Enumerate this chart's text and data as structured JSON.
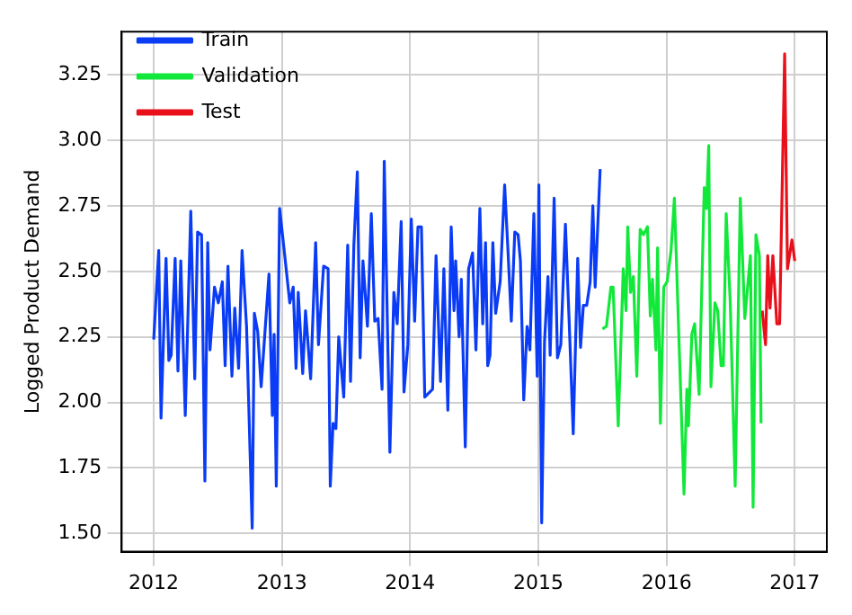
{
  "chart_data": {
    "type": "line",
    "ylabel": "Logged Product Demand",
    "xlim": [
      2011.75,
      2017.25
    ],
    "ylim": [
      1.43,
      3.415
    ],
    "xticks": [
      2012,
      2013,
      2014,
      2015,
      2016,
      2017
    ],
    "yticks": [
      {
        "value": 1.5,
        "label": "1.50"
      },
      {
        "value": 1.75,
        "label": "1.75"
      },
      {
        "value": 2.0,
        "label": "2.00"
      },
      {
        "value": 2.25,
        "label": "2.25"
      },
      {
        "value": 2.5,
        "label": "2.50"
      },
      {
        "value": 2.75,
        "label": "2.75"
      },
      {
        "value": 3.0,
        "label": "3.00"
      },
      {
        "value": 3.25,
        "label": "3.25"
      }
    ],
    "grid": true,
    "legend": "top left",
    "series": [
      {
        "name": "Train",
        "color": "#0b3cf5",
        "x": [
          2012.0,
          2012.039,
          2012.057,
          2012.096,
          2012.118,
          2012.136,
          2012.167,
          2012.189,
          2012.211,
          2012.246,
          2012.289,
          2012.32,
          2012.342,
          2012.373,
          2012.399,
          2012.421,
          2012.439,
          2012.474,
          2012.504,
          2012.535,
          2012.557,
          2012.579,
          2012.61,
          2012.632,
          2012.662,
          2012.689,
          2012.724,
          2012.768,
          2012.785,
          2012.811,
          2012.838,
          2012.899,
          2012.925,
          2012.939,
          2012.956,
          2012.982,
          2013.022,
          2013.061,
          2013.088,
          2013.11,
          2013.127,
          2013.162,
          2013.184,
          2013.224,
          2013.263,
          2013.285,
          2013.325,
          2013.36,
          2013.377,
          2013.399,
          2013.421,
          2013.443,
          2013.482,
          2013.513,
          2013.535,
          2013.561,
          2013.588,
          2013.61,
          2013.632,
          2013.667,
          2013.697,
          2013.724,
          2013.75,
          2013.781,
          2013.798,
          2013.842,
          2013.873,
          2013.899,
          2013.93,
          2013.952,
          2013.982,
          2014.009,
          2014.035,
          2014.061,
          2014.088,
          2014.114,
          2014.175,
          2014.202,
          2014.237,
          2014.263,
          2014.294,
          2014.32,
          2014.342,
          2014.355,
          2014.382,
          2014.399,
          2014.43,
          2014.456,
          2014.487,
          2014.513,
          2014.544,
          2014.566,
          2014.588,
          2014.605,
          2014.623,
          2014.645,
          2014.667,
          2014.702,
          2014.737,
          2014.763,
          2014.789,
          2014.816,
          2014.842,
          2014.86,
          2014.886,
          2014.912,
          2014.934,
          2014.965,
          2014.991,
          2015.004,
          2015.026,
          2015.048,
          2015.075,
          2015.092,
          2015.123,
          2015.149,
          2015.175,
          2015.211,
          2015.241,
          2015.272,
          2015.307,
          2015.329,
          2015.351,
          2015.377,
          2015.404,
          2015.425,
          2015.443,
          2015.482
        ],
        "values": [
          2.24,
          2.58,
          1.94,
          2.55,
          2.16,
          2.18,
          2.55,
          2.12,
          2.54,
          1.95,
          2.73,
          2.09,
          2.65,
          2.64,
          1.7,
          2.61,
          2.2,
          2.44,
          2.38,
          2.46,
          2.14,
          2.52,
          2.1,
          2.36,
          2.13,
          2.58,
          2.29,
          1.52,
          2.34,
          2.27,
          2.06,
          2.49,
          1.95,
          2.26,
          1.68,
          2.74,
          2.56,
          2.38,
          2.44,
          2.13,
          2.42,
          2.11,
          2.35,
          2.09,
          2.61,
          2.22,
          2.52,
          2.51,
          1.68,
          1.92,
          1.9,
          2.25,
          2.02,
          2.6,
          2.08,
          2.6,
          2.88,
          2.17,
          2.54,
          2.29,
          2.72,
          2.31,
          2.32,
          2.05,
          2.92,
          1.81,
          2.42,
          2.3,
          2.69,
          2.04,
          2.22,
          2.7,
          2.31,
          2.67,
          2.67,
          2.02,
          2.05,
          2.56,
          2.08,
          2.51,
          1.97,
          2.67,
          2.35,
          2.54,
          2.25,
          2.47,
          1.83,
          2.51,
          2.57,
          2.2,
          2.74,
          2.3,
          2.61,
          2.14,
          2.18,
          2.61,
          2.34,
          2.46,
          2.83,
          2.58,
          2.31,
          2.65,
          2.64,
          2.54,
          2.01,
          2.29,
          2.2,
          2.72,
          2.1,
          2.83,
          1.54,
          2.23,
          2.48,
          2.18,
          2.78,
          2.17,
          2.22,
          2.68,
          2.3,
          1.88,
          2.55,
          2.21,
          2.37,
          2.37,
          2.46,
          2.75,
          2.44,
          2.89
        ]
      },
      {
        "name": "Validation",
        "color": "#12e83a",
        "x": [
          2015.5,
          2015.531,
          2015.566,
          2015.583,
          2015.623,
          2015.662,
          2015.684,
          2015.697,
          2015.719,
          2015.741,
          2015.768,
          2015.794,
          2015.82,
          2015.851,
          2015.873,
          2015.89,
          2015.917,
          2015.93,
          2015.952,
          2015.978,
          2016.004,
          2016.035,
          2016.061,
          2016.096,
          2016.136,
          2016.158,
          2016.171,
          2016.197,
          2016.219,
          2016.254,
          2016.294,
          2016.311,
          2016.329,
          2016.346,
          2016.377,
          2016.399,
          2016.425,
          2016.443,
          2016.465,
          2016.496,
          2016.535,
          2016.575,
          2016.61,
          2016.654,
          2016.675,
          2016.697,
          2016.724,
          2016.737
        ],
        "values": [
          2.28,
          2.29,
          2.44,
          2.44,
          1.91,
          2.51,
          2.35,
          2.67,
          2.42,
          2.48,
          2.1,
          2.66,
          2.64,
          2.67,
          2.33,
          2.47,
          2.2,
          2.59,
          1.92,
          2.44,
          2.46,
          2.58,
          2.78,
          2.25,
          1.65,
          2.05,
          1.91,
          2.26,
          2.3,
          2.03,
          2.82,
          2.74,
          2.98,
          2.06,
          2.38,
          2.35,
          2.14,
          2.14,
          2.72,
          2.39,
          1.68,
          2.78,
          2.32,
          2.56,
          1.6,
          2.64,
          2.56,
          1.92
        ]
      },
      {
        "name": "Test",
        "color": "#e8101a",
        "x": [
          2016.746,
          2016.772,
          2016.789,
          2016.807,
          2016.829,
          2016.86,
          2016.882,
          2016.921,
          2016.943,
          2016.978,
          2017.0
        ],
        "values": [
          2.35,
          2.22,
          2.56,
          2.36,
          2.56,
          2.3,
          2.3,
          3.33,
          2.51,
          2.62,
          2.54
        ]
      }
    ]
  }
}
